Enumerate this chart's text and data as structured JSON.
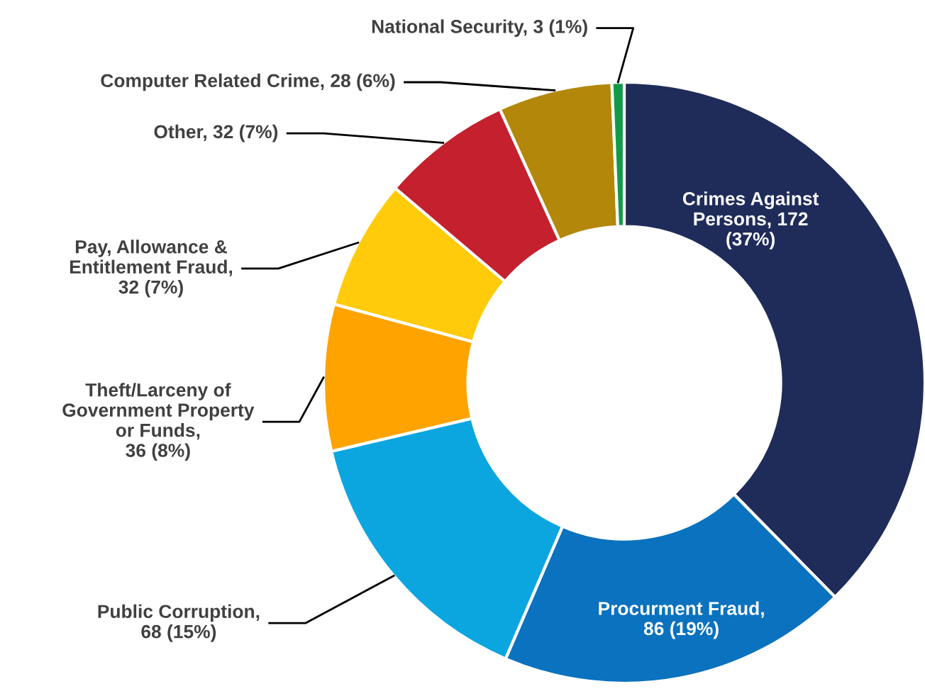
{
  "chart_data": {
    "type": "donut",
    "categories": [
      "Crimes Against Persons",
      "Procurment Fraud",
      "Public Corruption",
      "Theft/Larceny of Government Property or Funds",
      "Pay, Allowance & Entitlement Fraud",
      "Other",
      "Computer Related Crime",
      "National Security"
    ],
    "values": [
      172,
      86,
      68,
      36,
      32,
      32,
      28,
      3
    ],
    "colors": [
      "#1f2c5a",
      "#0a72be",
      "#0ba6e0",
      "#ffa300",
      "#ffcb0a",
      "#c4202e",
      "#b3870a",
      "#139a48"
    ],
    "value_labels": [
      ", 172 (37%)",
      ", 86 (19%)",
      ", 68 (15%)",
      ", 36 (8%)",
      ", 32 (7%)",
      ", 32 (7%)",
      ", 28 (6%)",
      ", 3 (1%)"
    ]
  }
}
